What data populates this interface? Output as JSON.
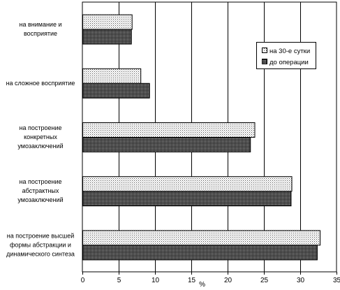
{
  "chart_data": {
    "type": "bar",
    "orientation": "horizontal",
    "categories": [
      [
        "на внимание и",
        "восприятие"
      ],
      [
        "на сложное восприятие"
      ],
      [
        "на построение",
        "конкретных",
        "умозаключений"
      ],
      [
        "на построение",
        "абстрактных",
        "умозаключений"
      ],
      [
        "на построение высшей",
        "формы абстракции и",
        "динамического синтеза"
      ]
    ],
    "series": [
      {
        "name": "на 30-е сутки",
        "values": [
          6.8,
          8.0,
          23.7,
          28.8,
          32.7
        ],
        "pattern": "dots-light"
      },
      {
        "name": "до операции",
        "values": [
          6.7,
          9.2,
          23.1,
          28.7,
          32.3
        ],
        "pattern": "dots-dark"
      }
    ],
    "xlabel": "%",
    "xlim": [
      0,
      35
    ],
    "xticks": [
      0,
      5,
      10,
      15,
      20,
      25,
      30,
      35
    ],
    "grid": "vertical",
    "legend_position": "right-upper"
  }
}
